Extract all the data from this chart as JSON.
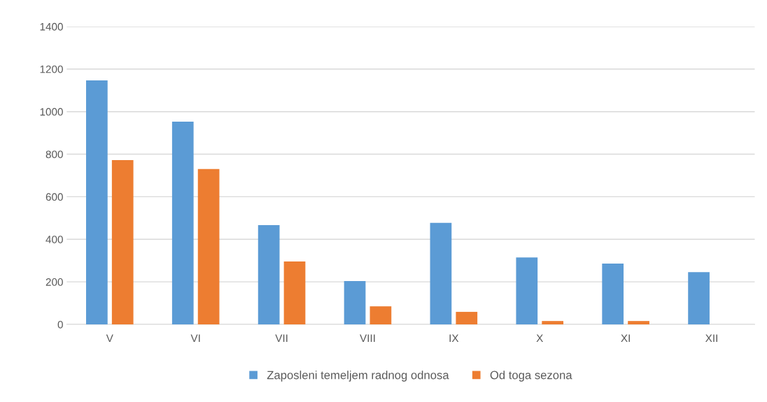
{
  "chart_data": {
    "type": "bar",
    "categories": [
      "V",
      "VI",
      "VII",
      "VIII",
      "IX",
      "X",
      "XI",
      "XII"
    ],
    "series": [
      {
        "name": "Zaposleni temeljem radnog odnosa",
        "color": "#5b9bd5",
        "values": [
          1147,
          953,
          467,
          204,
          477,
          315,
          286,
          246
        ]
      },
      {
        "name": "Od toga sezona",
        "color": "#ed7d31",
        "values": [
          772,
          730,
          296,
          85,
          59,
          16,
          16,
          null
        ]
      }
    ],
    "ylim": [
      0,
      1400
    ],
    "yticks": [
      0,
      200,
      400,
      600,
      800,
      1000,
      1200,
      1400
    ],
    "grid": "y",
    "legend": "bottom"
  }
}
